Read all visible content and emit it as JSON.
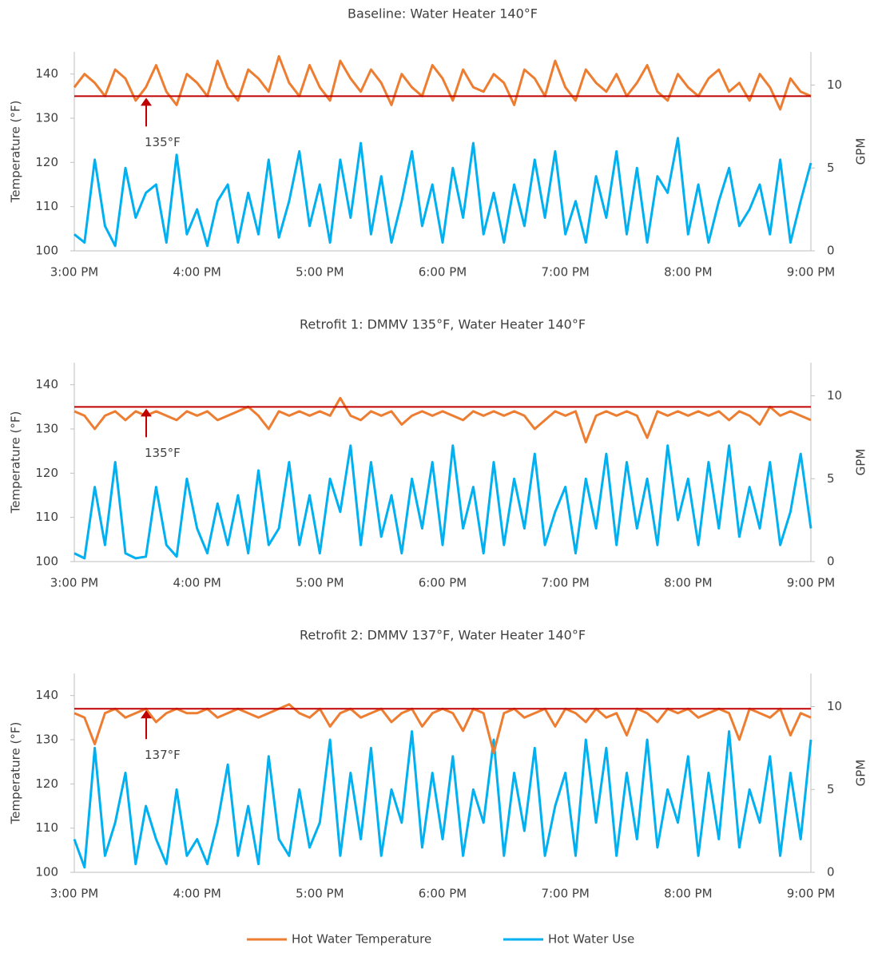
{
  "chart_data": [
    {
      "type": "line",
      "title": "Baseline: Water Heater 140°F",
      "ylabel": "Temperature (°F)",
      "y2label": "GPM",
      "categories": [
        "3:00 PM",
        null,
        null,
        null,
        null,
        null,
        null,
        null,
        null,
        null,
        null,
        null,
        "4:00 PM",
        null,
        null,
        null,
        null,
        null,
        null,
        null,
        null,
        null,
        null,
        null,
        "5:00 PM",
        null,
        null,
        null,
        null,
        null,
        null,
        null,
        null,
        null,
        null,
        null,
        "6:00 PM",
        null,
        null,
        null,
        null,
        null,
        null,
        null,
        null,
        null,
        null,
        null,
        "7:00 PM",
        null,
        null,
        null,
        null,
        null,
        null,
        null,
        null,
        null,
        null,
        null,
        "8:00 PM",
        null,
        null,
        null,
        null,
        null,
        null,
        null,
        null,
        null,
        null,
        null,
        "9:00 PM"
      ],
      "ylim": [
        100,
        145
      ],
      "yticks": [
        100,
        110,
        120,
        130,
        140
      ],
      "y2lim": [
        0,
        12
      ],
      "y2ticks": [
        0,
        5,
        10
      ],
      "reference_line": {
        "value": 135,
        "label": "135°F",
        "color": "#c00000"
      },
      "series": [
        {
          "axis": "y2",
          "values": [
            1,
            0.5,
            5.5,
            1.5,
            0.3,
            5,
            2,
            3.5,
            4,
            0.5,
            5.8,
            1,
            2.5,
            0.3,
            3,
            4,
            0.5,
            3.5,
            1,
            5.5,
            0.8,
            3,
            6,
            1.5,
            4,
            0.5,
            5.5,
            2,
            6.5,
            1,
            4.5,
            0.5,
            3,
            6,
            1.5,
            4,
            0.5,
            5,
            2,
            6.5,
            1,
            3.5,
            0.5,
            4,
            1.5,
            5.5,
            2,
            6,
            1,
            3,
            0.5,
            4.5,
            2,
            6,
            1,
            5,
            0.5,
            4.5,
            3.5,
            6.8,
            1,
            4,
            0.5,
            3,
            5,
            1.5,
            2.5,
            4,
            1,
            5.5,
            0.5,
            3,
            5.3
          ]
        },
        {
          "axis": "y",
          "values": [
            137,
            140,
            138,
            135,
            141,
            139,
            134,
            137,
            142,
            136,
            133,
            140,
            138,
            135,
            143,
            137,
            134,
            141,
            139,
            136,
            144,
            138,
            135,
            142,
            137,
            134,
            143,
            139,
            136,
            141,
            138,
            133,
            140,
            137,
            135,
            142,
            139,
            134,
            141,
            137,
            136,
            140,
            138,
            133,
            141,
            139,
            135,
            143,
            137,
            134,
            141,
            138,
            136,
            140,
            135,
            138,
            142,
            136,
            134,
            140,
            137,
            135,
            139,
            141,
            136,
            138,
            134,
            140,
            137,
            132,
            139,
            136,
            135
          ]
        }
      ]
    },
    {
      "type": "line",
      "title": "Retrofit 1: DMMV 135°F, Water Heater 140°F",
      "ylabel": "Temperature (°F)",
      "y2label": "GPM",
      "categories": [
        "3:00 PM",
        null,
        null,
        null,
        null,
        null,
        null,
        null,
        null,
        null,
        null,
        null,
        "4:00 PM",
        null,
        null,
        null,
        null,
        null,
        null,
        null,
        null,
        null,
        null,
        null,
        "5:00 PM",
        null,
        null,
        null,
        null,
        null,
        null,
        null,
        null,
        null,
        null,
        null,
        "6:00 PM",
        null,
        null,
        null,
        null,
        null,
        null,
        null,
        null,
        null,
        null,
        null,
        "7:00 PM",
        null,
        null,
        null,
        null,
        null,
        null,
        null,
        null,
        null,
        null,
        null,
        "8:00 PM",
        null,
        null,
        null,
        null,
        null,
        null,
        null,
        null,
        null,
        null,
        null,
        "9:00 PM"
      ],
      "ylim": [
        100,
        145
      ],
      "yticks": [
        100,
        110,
        120,
        130,
        140
      ],
      "y2lim": [
        0,
        12
      ],
      "y2ticks": [
        0,
        5,
        10
      ],
      "reference_line": {
        "value": 135,
        "label": "135°F",
        "color": "#c00000"
      },
      "series": [
        {
          "axis": "y2",
          "values": [
            0.5,
            0.2,
            4.5,
            1,
            6,
            0.5,
            0.2,
            0.3,
            4.5,
            1,
            0.3,
            5,
            2,
            0.5,
            3.5,
            1,
            4,
            0.5,
            5.5,
            1,
            2,
            6,
            1,
            4,
            0.5,
            5,
            3,
            7,
            1,
            6,
            1.5,
            4,
            0.5,
            5,
            2,
            6,
            1,
            7,
            2,
            4.5,
            0.5,
            6,
            1,
            5,
            2,
            6.5,
            1,
            3,
            4.5,
            0.5,
            5,
            2,
            6.5,
            1,
            6,
            2,
            5,
            1,
            7,
            2.5,
            5,
            1,
            6,
            2,
            7,
            1.5,
            4.5,
            2,
            6,
            1,
            3,
            6.5,
            2
          ]
        },
        {
          "axis": "y",
          "values": [
            134,
            133,
            130,
            133,
            134,
            132,
            134,
            133,
            134,
            133,
            132,
            134,
            133,
            134,
            132,
            133,
            134,
            135,
            133,
            130,
            134,
            133,
            134,
            133,
            134,
            133,
            137,
            133,
            132,
            134,
            133,
            134,
            131,
            133,
            134,
            133,
            134,
            133,
            132,
            134,
            133,
            134,
            133,
            134,
            133,
            130,
            132,
            134,
            133,
            134,
            127,
            133,
            134,
            133,
            134,
            133,
            128,
            134,
            133,
            134,
            133,
            134,
            133,
            134,
            132,
            134,
            133,
            131,
            135,
            133,
            134,
            133,
            132
          ]
        }
      ]
    },
    {
      "type": "line",
      "title": "Retrofit 2: DMMV 137°F, Water Heater 140°F",
      "ylabel": "Temperature (°F)",
      "y2label": "GPM",
      "categories": [
        "3:00 PM",
        null,
        null,
        null,
        null,
        null,
        null,
        null,
        null,
        null,
        null,
        null,
        "4:00 PM",
        null,
        null,
        null,
        null,
        null,
        null,
        null,
        null,
        null,
        null,
        null,
        "5:00 PM",
        null,
        null,
        null,
        null,
        null,
        null,
        null,
        null,
        null,
        null,
        null,
        "6:00 PM",
        null,
        null,
        null,
        null,
        null,
        null,
        null,
        null,
        null,
        null,
        null,
        "7:00 PM",
        null,
        null,
        null,
        null,
        null,
        null,
        null,
        null,
        null,
        null,
        null,
        "8:00 PM",
        null,
        null,
        null,
        null,
        null,
        null,
        null,
        null,
        null,
        null,
        null,
        "9:00 PM"
      ],
      "ylim": [
        100,
        145
      ],
      "yticks": [
        100,
        110,
        120,
        130,
        140
      ],
      "y2lim": [
        0,
        12
      ],
      "y2ticks": [
        0,
        5,
        10
      ],
      "reference_line": {
        "value": 137,
        "label": "137°F",
        "color": "#c00000"
      },
      "series": [
        {
          "axis": "y2",
          "values": [
            2,
            0.3,
            7.5,
            1,
            3,
            6,
            0.5,
            4,
            2,
            0.5,
            5,
            1,
            2,
            0.5,
            3,
            6.5,
            1,
            4,
            0.5,
            7,
            2,
            1,
            5,
            1.5,
            3,
            8,
            1,
            6,
            2,
            7.5,
            1,
            5,
            3,
            8.5,
            1.5,
            6,
            2,
            7,
            1,
            5,
            3,
            8,
            1,
            6,
            2.5,
            7.5,
            1,
            4,
            6,
            1,
            8,
            3,
            7.5,
            1,
            6,
            2,
            8,
            1.5,
            5,
            3,
            7,
            1,
            6,
            2,
            8.5,
            1.5,
            5,
            3,
            7,
            1,
            6,
            2,
            8
          ]
        },
        {
          "axis": "y",
          "values": [
            136,
            135,
            129,
            136,
            137,
            135,
            136,
            137,
            134,
            136,
            137,
            136,
            136,
            137,
            135,
            136,
            137,
            136,
            135,
            136,
            137,
            138,
            136,
            135,
            137,
            133,
            136,
            137,
            135,
            136,
            137,
            134,
            136,
            137,
            133,
            136,
            137,
            136,
            132,
            137,
            136,
            127,
            136,
            137,
            135,
            136,
            137,
            133,
            137,
            136,
            134,
            137,
            135,
            136,
            131,
            137,
            136,
            134,
            137,
            136,
            137,
            135,
            136,
            137,
            136,
            130,
            137,
            136,
            135,
            137,
            131,
            136,
            135
          ]
        }
      ]
    }
  ],
  "legend": [
    {
      "name": "Hot Water Use",
      "color": "#00b0f0"
    },
    {
      "name": "Hot Water Temperature",
      "color": "#ed7d31"
    }
  ]
}
